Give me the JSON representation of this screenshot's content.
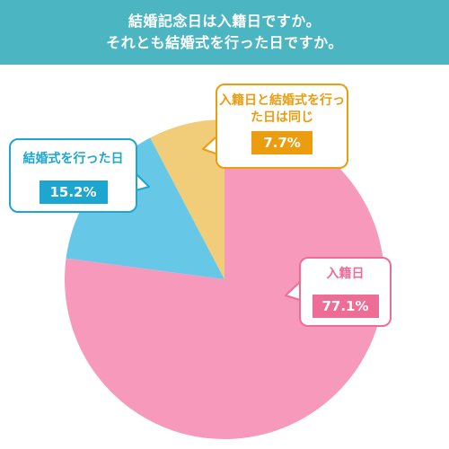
{
  "header": {
    "title_line1": "結婚記念日は入籍日ですか。",
    "title_line2": "それとも結婚式を行った日ですか。",
    "background_color": "#4bb5c2"
  },
  "chart_data": {
    "type": "pie",
    "start_angle": "12 o'clock, clockwise",
    "slices": [
      {
        "label": "入籍日",
        "value": 77.1,
        "display": "77.1%",
        "color": "#f799ba",
        "badge_color": "#ee6d97",
        "border_color": "#ee6d97"
      },
      {
        "label": "結婚式を行った日",
        "value": 15.2,
        "display": "15.2%",
        "color": "#66c8e6",
        "badge_color": "#1da6cf",
        "border_color": "#1da6cf"
      },
      {
        "label": "入籍日と結婚式を行った日は同じ",
        "value": 7.7,
        "display": "7.7%",
        "color": "#f2cd79",
        "badge_color": "#eb9c0f",
        "border_color": "#eb9c0f"
      }
    ]
  }
}
